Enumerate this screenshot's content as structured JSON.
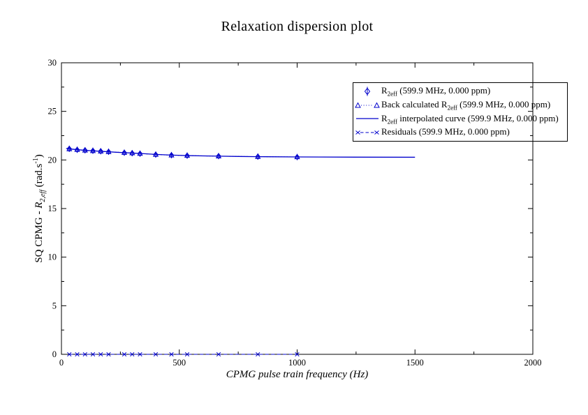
{
  "title": "Relaxation dispersion plot",
  "axes": {
    "xlabel": "CPMG pulse train frequency (Hz)",
    "ylabel_prefix": "SQ CPMG - ",
    "ylabel_r": "R",
    "ylabel_sub": "2,eff",
    "ylabel_unit_pre": " (rad.s",
    "ylabel_sup": "-1",
    "ylabel_unit_post": ")"
  },
  "chart_data": {
    "type": "line",
    "title": "Relaxation dispersion plot",
    "xlabel": "CPMG pulse train frequency (Hz)",
    "ylabel": "SQ CPMG - R2,eff (rad.s-1)",
    "xlim": [
      0,
      2000
    ],
    "ylim": [
      0,
      30
    ],
    "x_major_ticks": [
      0,
      500,
      1000,
      1500,
      2000
    ],
    "x_minor_step": 250,
    "y_major_ticks": [
      0,
      5,
      10,
      15,
      20,
      25,
      30
    ],
    "y_minor_step": 2.5,
    "grid": false,
    "legend_position": "upper-right",
    "accent_color": "#0000cc",
    "series": [
      {
        "name": "R2eff (599.9 MHz, 0.000 ppm)",
        "style": "scatter-errorbar",
        "marker": "diamond",
        "x": [
          33.33,
          66.67,
          100,
          133.33,
          166.67,
          200,
          266.67,
          300,
          333.33,
          400,
          466.67,
          533.33,
          666.67,
          833.33,
          1000
        ],
        "y": [
          21.15,
          21.05,
          21.0,
          20.95,
          20.9,
          20.85,
          20.75,
          20.7,
          20.65,
          20.55,
          20.5,
          20.45,
          20.4,
          20.35,
          20.3
        ]
      },
      {
        "name": "Back calculated R2eff (599.9 MHz, 0.000 ppm)",
        "style": "dotted-line-markers",
        "marker": "triangle",
        "x": [
          33.33,
          66.67,
          100,
          133.33,
          166.67,
          200,
          266.67,
          300,
          333.33,
          400,
          466.67,
          533.33,
          666.67,
          833.33,
          1000
        ],
        "y": [
          21.13,
          21.06,
          20.99,
          20.94,
          20.89,
          20.84,
          20.76,
          20.71,
          20.66,
          20.56,
          20.49,
          20.45,
          20.39,
          20.34,
          20.31
        ]
      },
      {
        "name": "R2eff interpolated curve (599.9 MHz, 0.000 ppm)",
        "style": "solid-line",
        "marker": "none",
        "x": [
          20,
          33,
          67,
          100,
          133,
          167,
          200,
          233,
          267,
          300,
          333,
          400,
          467,
          533,
          600,
          667,
          750,
          833,
          1000,
          1100,
          1250,
          1500
        ],
        "y": [
          21.18,
          21.14,
          21.06,
          20.99,
          20.94,
          20.89,
          20.84,
          20.79,
          20.75,
          20.71,
          20.67,
          20.57,
          20.5,
          20.45,
          20.42,
          20.39,
          20.36,
          20.34,
          20.31,
          20.3,
          20.29,
          20.28
        ]
      },
      {
        "name": "Residuals (599.9 MHz, 0.000 ppm)",
        "style": "dashed-line-markers",
        "marker": "x",
        "x": [
          33.33,
          66.67,
          100,
          133.33,
          166.67,
          200,
          266.67,
          300,
          333.33,
          400,
          466.67,
          533.33,
          666.67,
          833.33,
          1000
        ],
        "y": [
          0,
          0,
          0,
          0,
          0,
          0,
          0,
          0,
          0,
          0,
          0,
          0,
          0,
          0,
          0
        ]
      }
    ],
    "legend": [
      {
        "pre": "R",
        "sub": "2eff",
        "post": " (599.9 MHz, 0.000 ppm)",
        "marker": "diamond"
      },
      {
        "pre": "Back calculated R",
        "sub": "2eff",
        "post": " (599.9 MHz, 0.000 ppm)",
        "marker": "triangle-dotted-line"
      },
      {
        "pre": "R",
        "sub": "2eff",
        "post": " interpolated curve (599.9 MHz, 0.000 ppm)",
        "marker": "solid-line"
      },
      {
        "pre": "Residuals (599.9 MHz, 0.000 ppm)",
        "sub": "",
        "post": "",
        "marker": "x-dashed-line"
      }
    ]
  }
}
